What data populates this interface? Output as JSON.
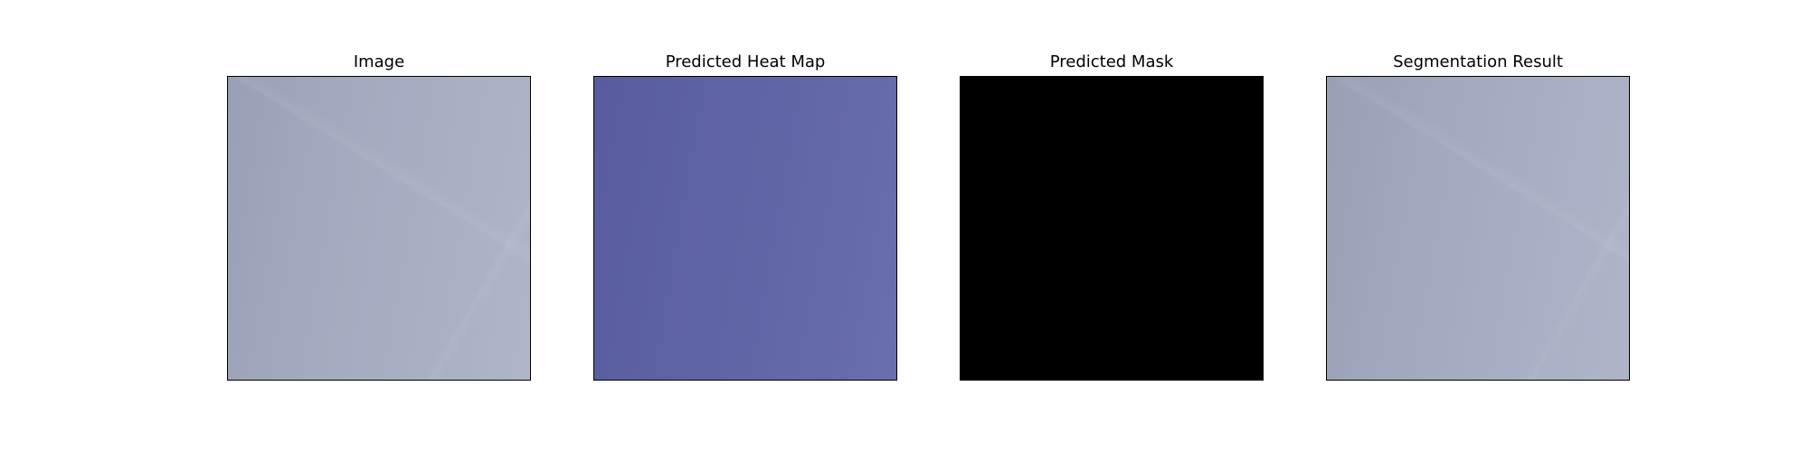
{
  "figure": {
    "panels": [
      {
        "title": "Image",
        "content": "original-image"
      },
      {
        "title": "Predicted Heat Map",
        "content": "heat-map"
      },
      {
        "title": "Predicted Mask",
        "content": "mask"
      },
      {
        "title": "Segmentation Result",
        "content": "overlay"
      }
    ]
  }
}
